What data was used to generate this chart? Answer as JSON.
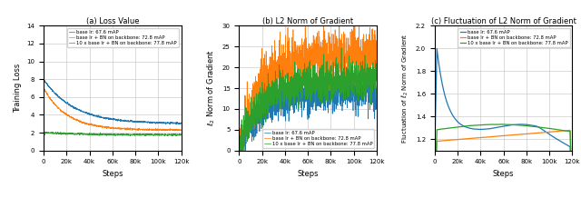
{
  "legend_labels": [
    "base lr: 67.6 mAP",
    "base lr + BN on backbone: 72.8 mAP",
    "10 x base lr + BN on backbone: 77.8 mAP"
  ],
  "colors": [
    "#1f77b4",
    "#ff7f0e",
    "#2ca02c"
  ],
  "steps_ticks": [
    0,
    20000,
    40000,
    60000,
    80000,
    100000,
    120000
  ],
  "steps_tick_labels": [
    "0",
    "20k",
    "40k",
    "60k",
    "80k",
    "100k",
    "120k"
  ],
  "plot1_title": "(a) Loss Value",
  "plot1_ylabel": "Training Loss",
  "plot1_xlabel": "Steps",
  "plot1_ylim": [
    0,
    14
  ],
  "plot1_yticks": [
    0,
    2,
    4,
    6,
    8,
    10,
    12,
    14
  ],
  "plot2_title": "(b) L2 Norm of Gradient",
  "plot2_ylabel": "$\\ell_2$ Norm of Gradient",
  "plot2_xlabel": "Steps",
  "plot2_ylim": [
    0,
    30
  ],
  "plot2_yticks": [
    0,
    5,
    10,
    15,
    20,
    25,
    30
  ],
  "plot3_title": "(c) Fluctuation of L2 Norm of Gradient",
  "plot3_ylabel": "Fluctuation of $\\ell_2$ Norm of Gradient",
  "plot3_xlabel": "Steps",
  "plot3_ylim": [
    1.1,
    2.2
  ],
  "plot3_yticks": [
    1.2,
    1.4,
    1.6,
    1.8,
    2.0,
    2.2
  ]
}
